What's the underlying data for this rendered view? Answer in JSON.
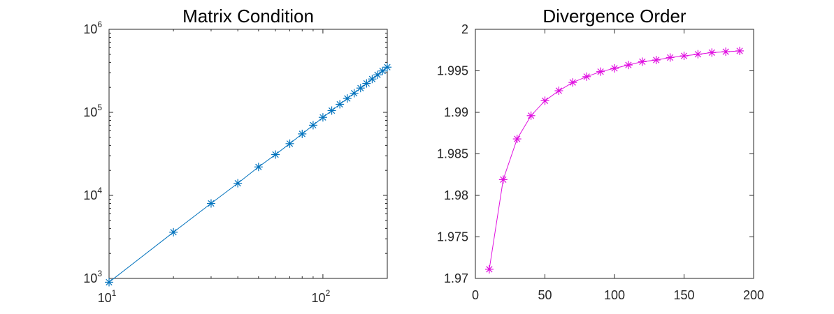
{
  "chart_data": [
    {
      "type": "line",
      "title": "Matrix Condition",
      "xlabel": "",
      "ylabel": "",
      "xscale": "log",
      "yscale": "log",
      "xlim": [
        10,
        200
      ],
      "ylim": [
        1000,
        1000000
      ],
      "x_ticks": [
        {
          "value": 10,
          "base": "10",
          "exp": "1"
        },
        {
          "value": 100,
          "base": "10",
          "exp": "2"
        }
      ],
      "y_ticks": [
        {
          "value": 1000,
          "base": "10",
          "exp": "3"
        },
        {
          "value": 10000,
          "base": "10",
          "exp": "4"
        },
        {
          "value": 100000,
          "base": "10",
          "exp": "5"
        },
        {
          "value": 1000000,
          "base": "10",
          "exp": "6"
        }
      ],
      "grid": false,
      "marker": "asterisk",
      "color": "#0072BD",
      "x": [
        10,
        20,
        30,
        40,
        50,
        60,
        70,
        80,
        90,
        100,
        110,
        120,
        130,
        140,
        150,
        160,
        170,
        180,
        190,
        200
      ],
      "y": [
        900,
        3600,
        8000,
        14000,
        22000,
        31000,
        42000,
        55000,
        70000,
        87000,
        105000,
        125000,
        147000,
        170000,
        196000,
        223000,
        252000,
        283000,
        315000,
        350000
      ]
    },
    {
      "type": "line",
      "title": "Divergence Order",
      "xlabel": "",
      "ylabel": "",
      "xscale": "linear",
      "yscale": "linear",
      "xlim": [
        0,
        200
      ],
      "ylim": [
        1.97,
        2
      ],
      "x_ticks": [
        "0",
        "50",
        "100",
        "150",
        "200"
      ],
      "y_ticks": [
        "1.97",
        "1.975",
        "1.98",
        "1.985",
        "1.99",
        "1.995",
        "2"
      ],
      "grid": false,
      "marker": "asterisk",
      "color": "#E010E0",
      "x": [
        10,
        20,
        30,
        40,
        50,
        60,
        70,
        80,
        90,
        100,
        110,
        120,
        130,
        140,
        150,
        160,
        170,
        180,
        190
      ],
      "y": [
        1.9711,
        1.9819,
        1.9868,
        1.9896,
        1.9914,
        1.9926,
        1.9936,
        1.9943,
        1.9949,
        1.9953,
        1.9957,
        1.9961,
        1.9963,
        1.9966,
        1.9968,
        1.997,
        1.9972,
        1.9973,
        1.9974
      ]
    }
  ]
}
